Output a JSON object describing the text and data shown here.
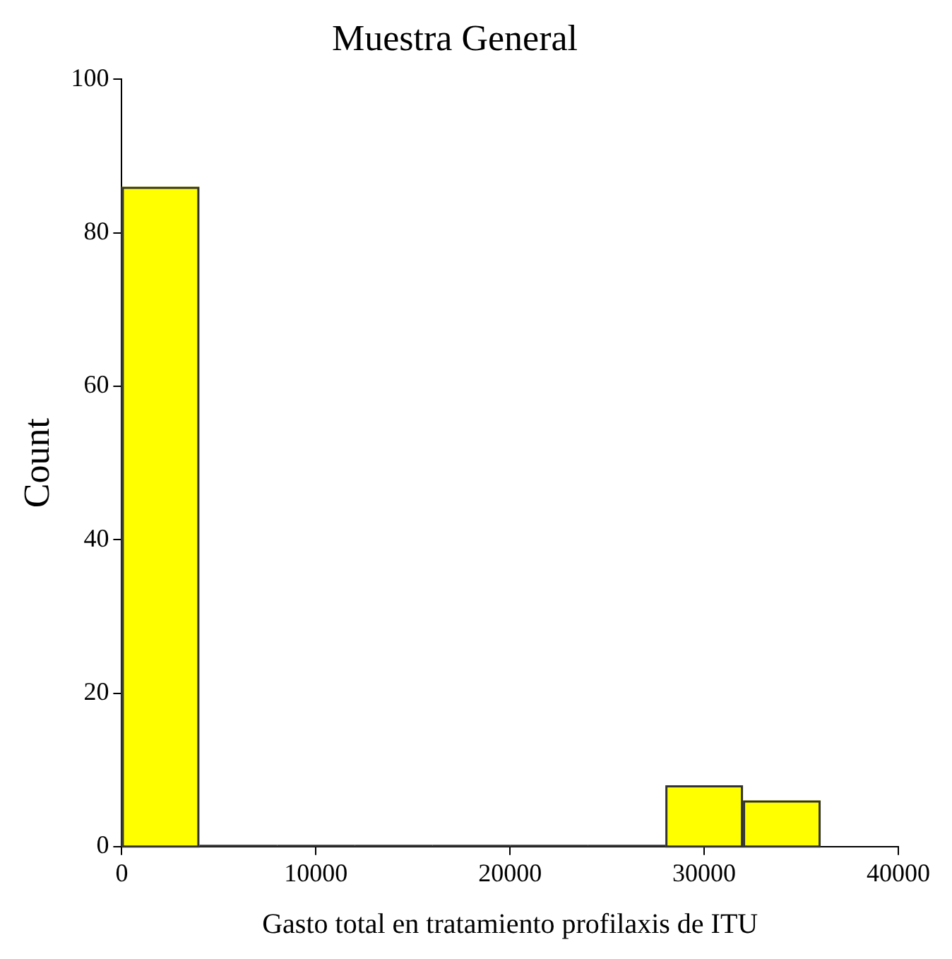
{
  "chart_data": {
    "type": "histogram",
    "title": "Muestra General",
    "xlabel": "Gasto total en tratamiento profilaxis de ITU",
    "ylabel": "Count",
    "bins": [
      0,
      4000,
      8000,
      12000,
      16000,
      20000,
      24000,
      28000,
      32000,
      36000
    ],
    "values": [
      86,
      0,
      0,
      0,
      0,
      0,
      0,
      8,
      6
    ],
    "color": "#ffff00",
    "xlim": [
      0,
      40000
    ],
    "xticks": [
      0,
      10000,
      20000,
      30000,
      40000
    ],
    "ylim": [
      0,
      100
    ],
    "yticks": [
      0,
      20,
      40,
      60,
      80,
      100
    ],
    "grid": false,
    "legend": false
  }
}
